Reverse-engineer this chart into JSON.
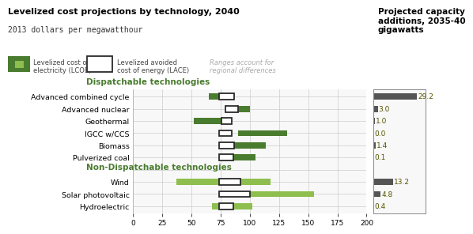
{
  "title": "Levelized cost projections by technology, 2040",
  "subtitle": "2013 dollars per megawatthour",
  "right_title": "Projected capacity\nadditions, 2035-40\ngigawatts",
  "legend_lcoe": "Levelized cost of\nelectricity (LCOE)",
  "legend_lace": "Levelized avoided\ncost of energy (LACE)",
  "legend_range": "Ranges account for\nregional differences",
  "categories": [
    "Advanced combined cycle",
    "Advanced nuclear",
    "Geothermal",
    "IGCC w/CCS",
    "Biomass",
    "Pulverized coal",
    "",
    "Wind",
    "Solar photovoltaic",
    "Hydroelectric"
  ],
  "dispatchable_label": "Dispatchable technologies",
  "nondispatchable_label": "Non-Dispatchable technologies",
  "capacity_values": [
    29.2,
    3.0,
    1.0,
    0.0,
    1.4,
    0.1,
    null,
    13.2,
    4.8,
    0.4
  ],
  "capacity_bar_widths": [
    29.2,
    3.0,
    1.0,
    0.0,
    1.4,
    0.1,
    0,
    13.2,
    4.8,
    0.4
  ],
  "lcoe_ranges": [
    [
      65,
      85
    ],
    [
      83,
      100
    ],
    [
      52,
      84
    ],
    [
      90,
      132
    ],
    [
      86,
      114
    ],
    [
      85,
      105
    ],
    null,
    [
      37,
      118
    ],
    [
      80,
      155
    ],
    [
      68,
      102
    ]
  ],
  "lace_ranges": [
    [
      74,
      87
    ],
    [
      79,
      90
    ],
    [
      76,
      85
    ],
    [
      74,
      85
    ],
    [
      74,
      87
    ],
    [
      74,
      86
    ],
    null,
    [
      74,
      92
    ],
    [
      74,
      100
    ],
    [
      74,
      86
    ]
  ],
  "is_nondispatchable": [
    false,
    false,
    false,
    false,
    false,
    false,
    false,
    true,
    true,
    true
  ],
  "lcoe_dark_green": "#4a7c2f",
  "lcoe_light_green": "#8dbe4e",
  "lace_box_color": "#2a2a2a",
  "capacity_bar_color": "#555555",
  "xlim": [
    0,
    200
  ],
  "xticks": [
    0,
    25,
    50,
    75,
    100,
    125,
    150,
    175,
    200
  ],
  "background_color": "#f8f8f8",
  "grid_color": "#cccccc"
}
